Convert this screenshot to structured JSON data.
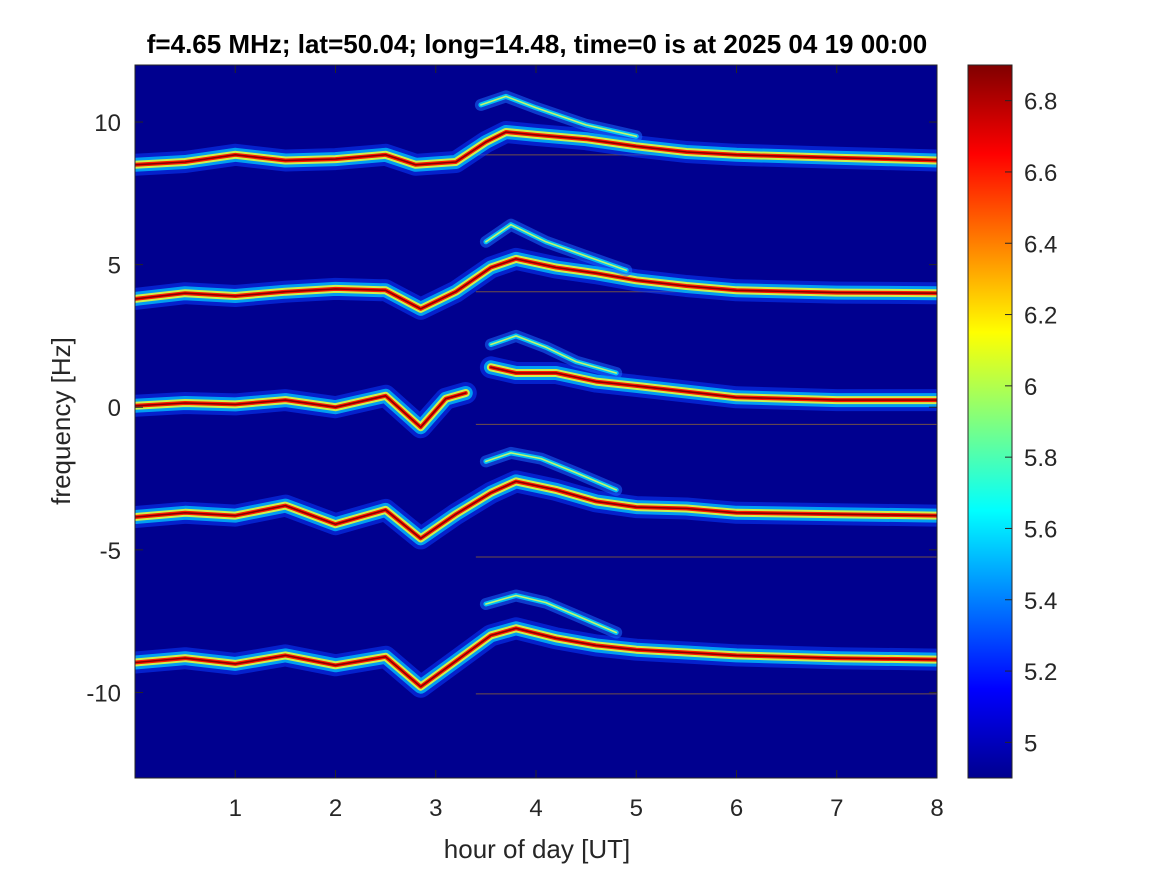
{
  "chart_data": {
    "type": "heatmap",
    "title": "f=4.65 MHz;  lat=50.04; long=14.48, time=0 is at 2025 04 19 00:00",
    "xlabel": "hour of day [UT]",
    "ylabel": "frequency [Hz]",
    "xlim": [
      0,
      8
    ],
    "ylim": [
      -13,
      12
    ],
    "x_ticks": [
      1,
      2,
      3,
      4,
      5,
      6,
      7,
      8
    ],
    "x_tick_labels": [
      "1",
      "2",
      "3",
      "4",
      "5",
      "6",
      "7",
      "8"
    ],
    "y_ticks": [
      10,
      5,
      0,
      -5,
      -10
    ],
    "y_tick_labels": [
      "10",
      "5",
      "0",
      "-5",
      "-10"
    ],
    "colorbar": {
      "range": [
        4.9,
        6.9
      ],
      "ticks": [
        6.8,
        6.6,
        6.4,
        6.2,
        6,
        5.8,
        5.6,
        5.4,
        5.2,
        5
      ],
      "tick_labels": [
        "6.8",
        "6.6",
        "6.4",
        "6.2",
        "6",
        "5.8",
        "5.6",
        "5.4",
        "5.2",
        "5"
      ],
      "colormap": "jet"
    },
    "background_color": "#00008f",
    "traces": [
      {
        "offset": 9.45,
        "main": [
          [
            0,
            8.5
          ],
          [
            0.5,
            8.6
          ],
          [
            1,
            8.85
          ],
          [
            1.5,
            8.65
          ],
          [
            2,
            8.7
          ],
          [
            2.5,
            8.85
          ],
          [
            2.8,
            8.5
          ],
          [
            3.2,
            8.6
          ],
          [
            3.5,
            9.3
          ],
          [
            3.7,
            9.65
          ],
          [
            4,
            9.55
          ],
          [
            4.5,
            9.4
          ],
          [
            5,
            9.15
          ],
          [
            5.5,
            8.95
          ],
          [
            6,
            8.85
          ],
          [
            7,
            8.75
          ],
          [
            8,
            8.65
          ]
        ],
        "upper": [
          [
            3.45,
            10.6
          ],
          [
            3.7,
            10.9
          ],
          [
            4.0,
            10.5
          ],
          [
            4.5,
            9.9
          ],
          [
            5.0,
            9.5
          ]
        ]
      },
      {
        "offset": 4.65,
        "main": [
          [
            0,
            3.8
          ],
          [
            0.5,
            4.0
          ],
          [
            1,
            3.9
          ],
          [
            1.5,
            4.05
          ],
          [
            2,
            4.15
          ],
          [
            2.5,
            4.1
          ],
          [
            2.85,
            3.45
          ],
          [
            3.2,
            4.05
          ],
          [
            3.55,
            4.9
          ],
          [
            3.8,
            5.2
          ],
          [
            4.2,
            4.9
          ],
          [
            4.6,
            4.7
          ],
          [
            5,
            4.45
          ],
          [
            5.5,
            4.25
          ],
          [
            6,
            4.1
          ],
          [
            7,
            4.02
          ],
          [
            8,
            4.0
          ]
        ],
        "upper": [
          [
            3.5,
            5.8
          ],
          [
            3.75,
            6.4
          ],
          [
            4.1,
            5.8
          ],
          [
            4.5,
            5.3
          ],
          [
            4.9,
            4.8
          ]
        ]
      },
      {
        "offset": 0,
        "main": [
          [
            0,
            0.05
          ],
          [
            0.5,
            0.15
          ],
          [
            1,
            0.1
          ],
          [
            1.5,
            0.25
          ],
          [
            2,
            0.0
          ],
          [
            2.5,
            0.4
          ],
          [
            2.85,
            -0.7
          ],
          [
            3.1,
            0.3
          ],
          [
            3.3,
            0.5
          ]
        ],
        "upper": [
          [
            3.55,
            2.2
          ],
          [
            3.8,
            2.5
          ],
          [
            4.1,
            2.1
          ],
          [
            4.4,
            1.6
          ],
          [
            4.8,
            1.2
          ]
        ],
        "after": [
          [
            3.55,
            1.4
          ],
          [
            3.8,
            1.2
          ],
          [
            4.2,
            1.2
          ],
          [
            4.6,
            0.9
          ],
          [
            5,
            0.75
          ],
          [
            5.5,
            0.55
          ],
          [
            6,
            0.35
          ],
          [
            7,
            0.25
          ],
          [
            8,
            0.25
          ]
        ]
      },
      {
        "offset": -4.65,
        "main": [
          [
            0,
            -3.85
          ],
          [
            0.5,
            -3.7
          ],
          [
            1,
            -3.8
          ],
          [
            1.5,
            -3.45
          ],
          [
            2,
            -4.1
          ],
          [
            2.5,
            -3.6
          ],
          [
            2.85,
            -4.6
          ],
          [
            3.2,
            -3.75
          ],
          [
            3.55,
            -3.0
          ],
          [
            3.8,
            -2.6
          ],
          [
            4.2,
            -2.9
          ],
          [
            4.6,
            -3.3
          ],
          [
            5,
            -3.5
          ],
          [
            5.5,
            -3.55
          ],
          [
            6,
            -3.7
          ],
          [
            7,
            -3.75
          ],
          [
            8,
            -3.8
          ]
        ],
        "upper": [
          [
            3.5,
            -1.9
          ],
          [
            3.75,
            -1.6
          ],
          [
            4.05,
            -1.8
          ],
          [
            4.4,
            -2.3
          ],
          [
            4.8,
            -2.9
          ]
        ]
      },
      {
        "offset": -9.45,
        "main": [
          [
            0,
            -8.95
          ],
          [
            0.5,
            -8.8
          ],
          [
            1,
            -9.0
          ],
          [
            1.5,
            -8.7
          ],
          [
            2,
            -9.05
          ],
          [
            2.5,
            -8.75
          ],
          [
            2.85,
            -9.8
          ],
          [
            3.2,
            -8.9
          ],
          [
            3.55,
            -8.0
          ],
          [
            3.8,
            -7.75
          ],
          [
            4.2,
            -8.1
          ],
          [
            4.6,
            -8.35
          ],
          [
            5,
            -8.5
          ],
          [
            5.5,
            -8.6
          ],
          [
            6,
            -8.7
          ],
          [
            7,
            -8.8
          ],
          [
            8,
            -8.85
          ]
        ],
        "upper": [
          [
            3.5,
            -6.9
          ],
          [
            3.8,
            -6.6
          ],
          [
            4.1,
            -6.85
          ],
          [
            4.4,
            -7.3
          ],
          [
            4.8,
            -7.9
          ]
        ]
      }
    ]
  }
}
